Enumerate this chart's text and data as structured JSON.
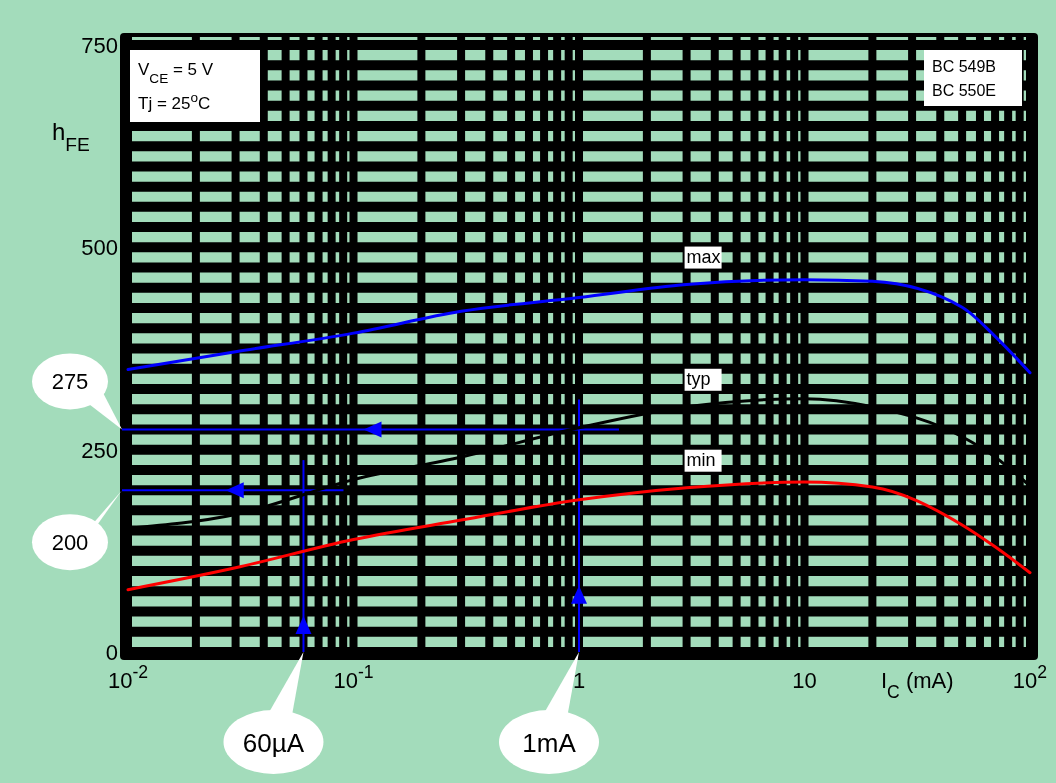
{
  "chart_data": {
    "type": "line",
    "xlabel": "I$_{C}$  (mA)",
    "ylabel": "h$_{FE}$",
    "x": [
      0.01,
      0.03,
      0.1,
      0.3,
      1,
      3,
      10,
      20,
      50,
      70,
      100
    ],
    "series": [
      {
        "name": "max",
        "color": "#0000ff",
        "values": [
          349,
          371,
          394,
          421,
          438,
          454,
          460,
          458,
          426,
          390,
          345
        ]
      },
      {
        "name": "typ",
        "color": "#000000",
        "values": [
          153,
          170,
          213,
          241,
          277,
          303,
          313,
          303,
          266,
          241,
          205
        ]
      },
      {
        "name": "min",
        "color": "#ff0000",
        "values": [
          77,
          104,
          139,
          163,
          188,
          203,
          210,
          204,
          157,
          130,
          98
        ]
      }
    ],
    "log": "x",
    "xlim": [
      0.01,
      100
    ],
    "ylim": [
      0,
      750
    ],
    "xticks": [
      {
        "value": 0.01,
        "label": "10$^{-2}$"
      },
      {
        "value": 0.1,
        "label": "10$^{-1}$"
      },
      1,
      10,
      {
        "value": 100,
        "label": "10$^{2}$"
      }
    ],
    "yticks": [
      0,
      250,
      500,
      750
    ],
    "grid": true,
    "legend": false,
    "marker": "none",
    "line_style": "solid",
    "annotations": [
      "V$_{CE}$ = 5 V",
      "Tj = 25$^{o}$C",
      "BC 549B",
      "BC 550E"
    ],
    "ref_lines": [
      {
        "axis": "y",
        "value": 275,
        "label": "275",
        "color": "#0000ff"
      },
      {
        "axis": "x",
        "value": 1,
        "label": "1mA",
        "color": "#0000ff"
      },
      {
        "axis": "y",
        "value": 200,
        "label": "200",
        "color": "#0000ff"
      },
      {
        "axis": "x",
        "value": 0.06,
        "label": "60µA",
        "color": "#0000ff"
      }
    ]
  }
}
